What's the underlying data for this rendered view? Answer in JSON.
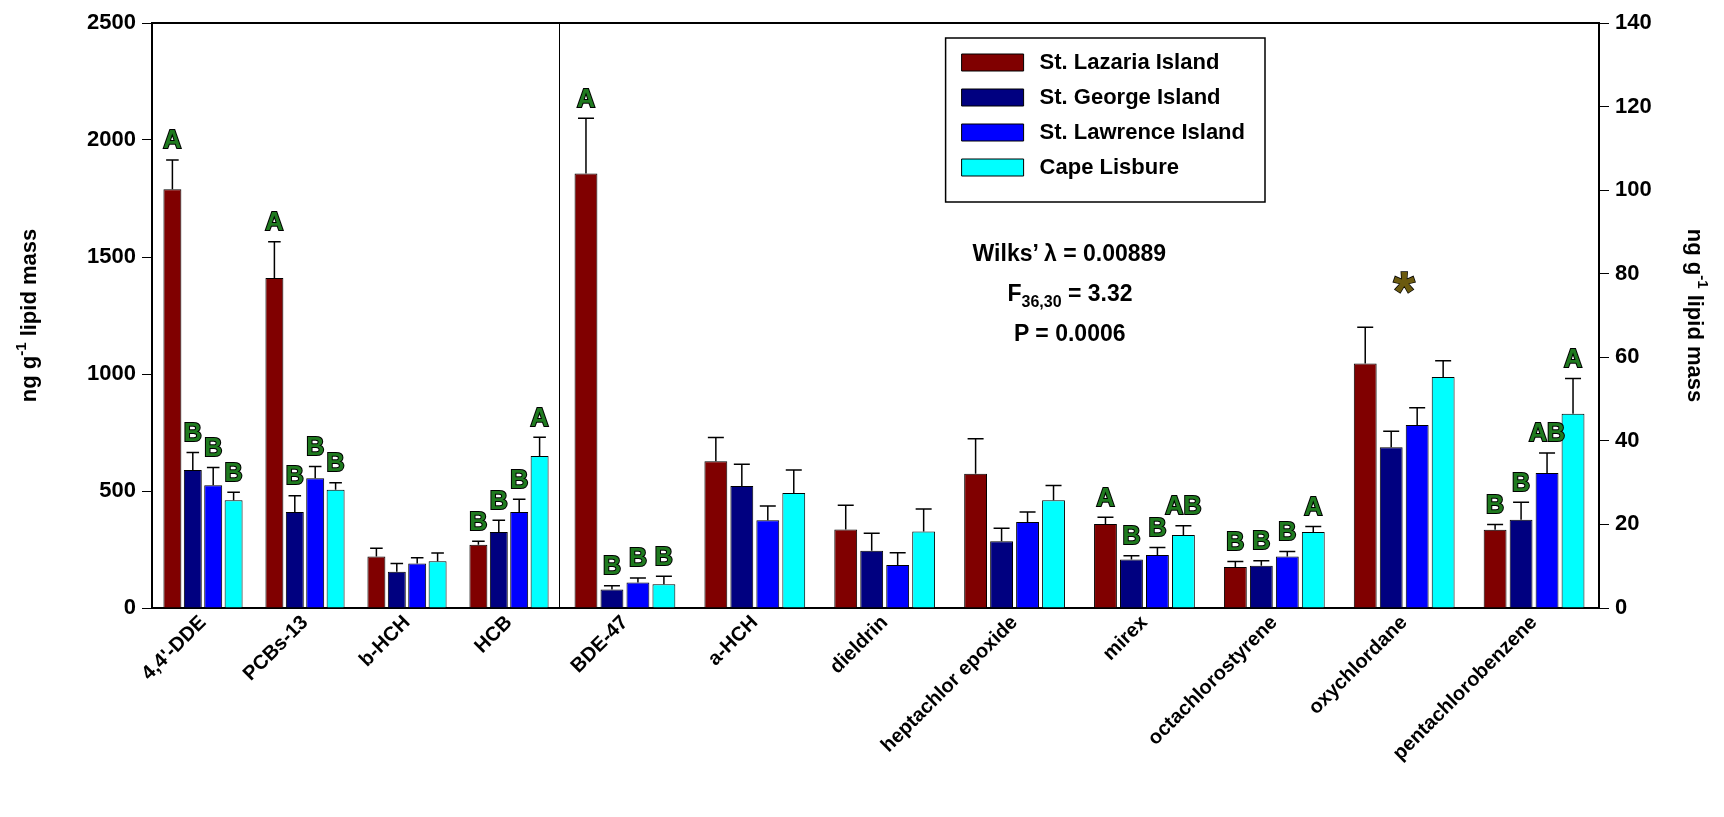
{
  "chart_data": [
    {
      "type": "bar",
      "ylabel": "ng g$^{-1}$ lipid mass",
      "categories": [
        "4,4'-DDE",
        "PCBs-13",
        "b-HCH",
        "HCB"
      ],
      "ylim": [
        0,
        2500
      ],
      "yticks": [
        0,
        500,
        1000,
        1500,
        2000,
        2500
      ],
      "grid": false,
      "series": [
        {
          "color": "#800000",
          "values": [
            1790,
            1410,
            220,
            270
          ],
          "errors": [
            [
              1790,
              1915
            ],
            [
              1410,
              1565
            ],
            [
              220,
              255
            ],
            [
              270,
              285
            ]
          ],
          "value_labels": [
            "A",
            "A",
            null,
            "B"
          ]
        },
        {
          "color": "#000080",
          "values": [
            590,
            410,
            155,
            325
          ],
          "errors": [
            [
              590,
              665
            ],
            [
              410,
              480
            ],
            [
              155,
              190
            ],
            [
              325,
              375
            ]
          ],
          "value_labels": [
            "B",
            "B",
            null,
            "B"
          ]
        },
        {
          "color": "#0000ff",
          "values": [
            525,
            555,
            190,
            410
          ],
          "errors": [
            [
              525,
              600
            ],
            [
              555,
              605
            ],
            [
              190,
              215
            ],
            [
              410,
              465
            ]
          ],
          "value_labels": [
            "B",
            "B",
            null,
            "B"
          ]
        },
        {
          "color": "#00ffff",
          "values": [
            460,
            505,
            200,
            650
          ],
          "errors": [
            [
              460,
              495
            ],
            [
              505,
              535
            ],
            [
              200,
              235
            ],
            [
              650,
              730
            ]
          ],
          "value_labels": [
            "B",
            "B",
            null,
            "A"
          ]
        }
      ]
    },
    {
      "type": "bar",
      "y2label": "ng g$^{-1}$ lipid mass",
      "categories": [
        "BDE-47",
        "a-HCH",
        "dieldrin",
        "heptachlor epoxide",
        "mirex",
        "octachlorostyrene",
        "oxychlordane",
        "pentachlorobenzene"
      ],
      "y2lim": [
        0,
        140
      ],
      "y2ticks": [
        0,
        20,
        40,
        60,
        80,
        100,
        120,
        140
      ],
      "grid": false,
      "legend": "top right",
      "annotations": [
        "Wilks’ λ = 0.00889",
        "F$_{36,30}$ = 3.32",
        "P = 0.0006",
        "*"
      ],
      "series": [
        {
          "name": "St. Lazaria Island",
          "color": "#800000",
          "axis": "y2",
          "values": [
            104,
            35.1,
            18.8,
            32.1,
            20.1,
            9.8,
            58.5,
            18.7
          ],
          "errors": [
            [
              104,
              117.2
            ],
            [
              35.1,
              40.8
            ],
            [
              18.8,
              24.6
            ],
            [
              32.1,
              40.5
            ],
            [
              20.1,
              21.7
            ],
            [
              9.8,
              11.1
            ],
            [
              58.5,
              67.2
            ],
            [
              18.7,
              20.0
            ]
          ],
          "value_labels": [
            "A",
            null,
            null,
            null,
            "A",
            "B",
            null,
            "B"
          ]
        },
        {
          "name": "St. George Island",
          "color": "#000080",
          "axis": "y2",
          "values": [
            4.4,
            29.2,
            13.7,
            16.0,
            11.6,
            10.1,
            38.5,
            21.1
          ],
          "errors": [
            [
              4.4,
              5.3
            ],
            [
              29.2,
              34.4
            ],
            [
              13.7,
              17.9
            ],
            [
              16.0,
              19.1
            ],
            [
              11.6,
              12.5
            ],
            [
              10.1,
              11.3
            ],
            [
              38.5,
              42.3
            ],
            [
              21.1,
              25.3
            ]
          ],
          "value_labels": [
            "B",
            null,
            null,
            null,
            "B",
            "B",
            null,
            "B"
          ]
        },
        {
          "name": "St. Lawrence Island",
          "color": "#0000ff",
          "axis": "y2",
          "values": [
            6.1,
            21.0,
            10.3,
            20.6,
            12.7,
            12.3,
            43.8,
            32.3
          ],
          "errors": [
            [
              6.1,
              7.2
            ],
            [
              21.0,
              24.4
            ],
            [
              10.3,
              13.2
            ],
            [
              20.6,
              23.0
            ],
            [
              12.7,
              14.5
            ],
            [
              12.3,
              13.5
            ],
            [
              43.8,
              47.9
            ],
            [
              32.3,
              37.1
            ]
          ],
          "value_labels": [
            "B",
            null,
            null,
            null,
            "B",
            "B",
            null,
            "AB"
          ]
        },
        {
          "name": "Cape Lisbure",
          "color": "#00ffff",
          "axis": "y2",
          "values": [
            5.7,
            27.5,
            18.3,
            25.8,
            17.5,
            18.2,
            55.3,
            46.5
          ],
          "errors": [
            [
              5.7,
              7.6
            ],
            [
              27.5,
              33.0
            ],
            [
              18.3,
              23.7
            ],
            [
              25.8,
              29.3
            ],
            [
              17.5,
              19.7
            ],
            [
              18.2,
              19.5
            ],
            [
              55.3,
              59.2
            ],
            [
              46.5,
              54.9
            ]
          ],
          "value_labels": [
            "B",
            null,
            null,
            null,
            "AB",
            "A",
            null,
            "A"
          ]
        }
      ]
    }
  ]
}
